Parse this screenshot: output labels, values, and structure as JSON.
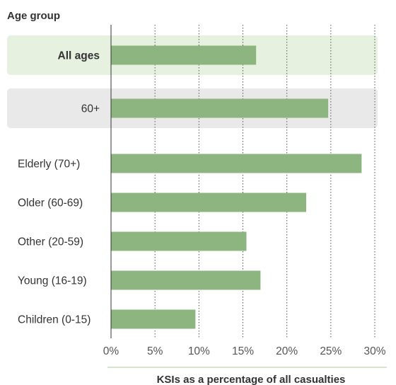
{
  "chart_data": {
    "type": "bar",
    "orientation": "horizontal",
    "ylabel": "Age group",
    "xlabel": "KSIs as a percentage of all casualties",
    "xlim": [
      0,
      30
    ],
    "x_ticks": [
      0,
      5,
      10,
      15,
      20,
      25,
      30
    ],
    "x_tick_labels": [
      "0%",
      "5%",
      "10%",
      "15%",
      "20%",
      "25%",
      "30%"
    ],
    "grid": "vertical-dotted",
    "bar_color": "#8db57f",
    "categories": [
      "All ages",
      "60+",
      "Elderly (70+)",
      "Older (60-69)",
      "Other (20-59)",
      "Young (16-19)",
      "Children (0-15)"
    ],
    "values": [
      16.5,
      24.7,
      28.5,
      22.2,
      15.4,
      17.0,
      9.6
    ],
    "highlight": [
      {
        "category": "All ages",
        "color": "#e6f2df",
        "bold": true
      },
      {
        "category": "60+",
        "color": "#e9e9e9",
        "bold": false
      }
    ]
  }
}
